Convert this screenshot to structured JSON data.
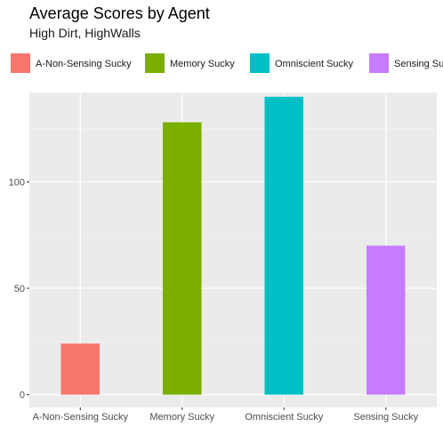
{
  "chart_data": {
    "type": "bar",
    "title": "Average Scores by Agent",
    "subtitle": "High Dirt, HighWalls",
    "xlabel": "",
    "ylabel": "",
    "categories": [
      "A-Non-Sensing Sucky",
      "Memory Sucky",
      "Omniscient Sucky",
      "Sensing Sucky"
    ],
    "values": [
      24,
      128,
      140,
      70
    ],
    "colors": [
      "#F8766D",
      "#7CAE00",
      "#00BFC4",
      "#C77CFF"
    ],
    "ylim": [
      -6,
      142
    ],
    "yticks": [
      0,
      50,
      100
    ],
    "grid": true,
    "legend_position": "top",
    "legend": [
      "A-Non-Sensing Sucky",
      "Memory Sucky",
      "Omniscient Sucky",
      "Sensing Sucky"
    ]
  }
}
